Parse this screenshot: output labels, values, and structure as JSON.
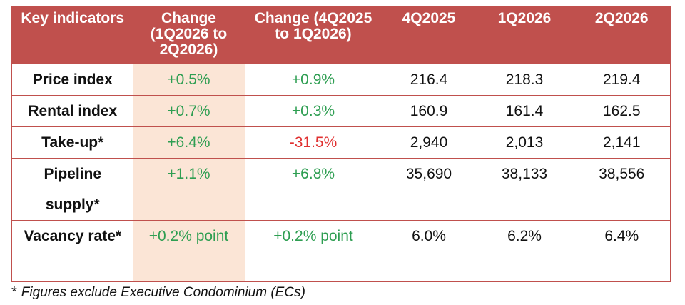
{
  "table": {
    "headers": [
      "Key indicators",
      "Change (1Q2026 to 2Q2026)",
      "Change (4Q2025 to 1Q2026)",
      "4Q2025",
      "1Q2026",
      "2Q2026"
    ],
    "rows": [
      {
        "indicator": "Price index",
        "change_q2": "+0.5%",
        "change_q1": "+0.9%",
        "q4_2025": "216.4",
        "q1_2026": "218.3",
        "q2_2026": "219.4",
        "change_q2_trend": "up",
        "change_q1_trend": "up"
      },
      {
        "indicator": "Rental index",
        "change_q2": "+0.7%",
        "change_q1": "+0.3%",
        "q4_2025": "160.9",
        "q1_2026": "161.4",
        "q2_2026": "162.5",
        "change_q2_trend": "up",
        "change_q1_trend": "up"
      },
      {
        "indicator": "Take-up*",
        "change_q2": "+6.4%",
        "change_q1": "-31.5%",
        "q4_2025": "2,940",
        "q1_2026": "2,013",
        "q2_2026": "2,141",
        "change_q2_trend": "up",
        "change_q1_trend": "down"
      },
      {
        "indicator": "Pipeline supply*",
        "change_q2": "+1.1%",
        "change_q1": "+6.8%",
        "q4_2025": "35,690",
        "q1_2026": "38,133",
        "q2_2026": "38,556",
        "change_q2_trend": "up",
        "change_q1_trend": "up"
      },
      {
        "indicator": "Vacancy rate*",
        "change_q2": "+0.2% point",
        "change_q1": "+0.2% point",
        "q4_2025": "6.0%",
        "q1_2026": "6.2%",
        "q2_2026": "6.4%",
        "change_q2_trend": "up",
        "change_q1_trend": "up"
      }
    ]
  },
  "footnote": {
    "marker": "*",
    "text": "Figures exclude Executive Condominium (ECs)"
  },
  "colors": {
    "header_bg": "#c0504d",
    "highlight_column": "#fbe5d6",
    "positive": "#2e9e52",
    "negative": "#e03030"
  }
}
